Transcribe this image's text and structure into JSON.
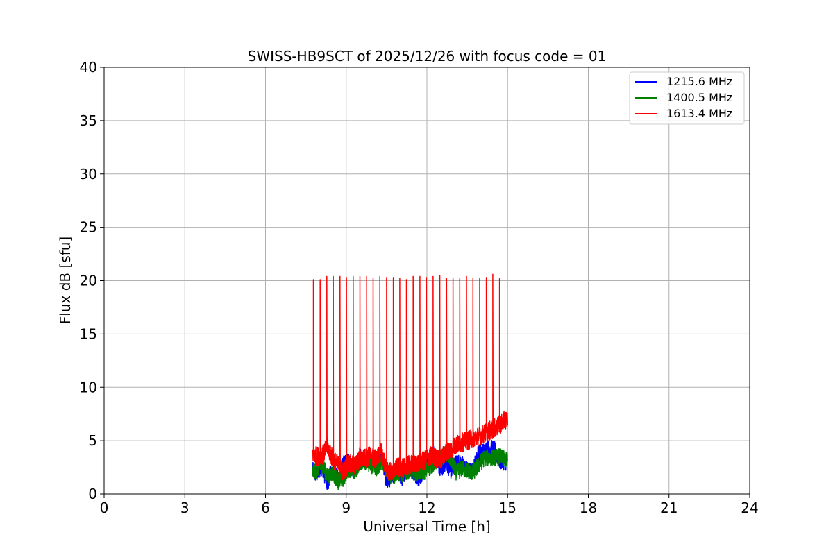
{
  "chart_data": {
    "type": "line",
    "title": "SWISS-HB9SCT of 2025/12/26 with focus code = 01",
    "xlabel": "Universal Time [h]",
    "ylabel": "Flux dB [sfu]",
    "xlim": [
      0,
      24
    ],
    "ylim": [
      0,
      40
    ],
    "xticks": [
      0,
      3,
      6,
      9,
      12,
      15,
      18,
      21,
      24
    ],
    "yticks": [
      0,
      5,
      10,
      15,
      20,
      25,
      30,
      35,
      40
    ],
    "grid": true,
    "legend_position": "top-right",
    "series": [
      {
        "name": "1215.6 MHz",
        "color": "#0000ff",
        "x": [
          7.75,
          7.9,
          8.1,
          8.3,
          8.5,
          8.7,
          8.9,
          9.1,
          9.3,
          9.5,
          9.7,
          9.9,
          10.1,
          10.3,
          10.5,
          10.7,
          10.9,
          11.1,
          11.3,
          11.5,
          11.7,
          11.9,
          12.1,
          12.3,
          12.5,
          12.7,
          12.9,
          13.1,
          13.3,
          13.5,
          13.7,
          13.9,
          14.1,
          14.3,
          14.5,
          14.7,
          14.9,
          15.0
        ],
        "y": [
          2.2,
          1.8,
          2.6,
          1.0,
          2.4,
          1.4,
          2.8,
          3.2,
          2.1,
          3.5,
          3.1,
          3.4,
          2.9,
          3.8,
          1.2,
          1.6,
          2.2,
          1.4,
          2.8,
          2.0,
          1.5,
          2.3,
          3.4,
          3.9,
          2.2,
          3.0,
          2.1,
          3.0,
          2.8,
          2.2,
          2.1,
          3.8,
          4.0,
          4.3,
          4.2,
          3.1,
          3.0,
          3.0
        ]
      },
      {
        "name": "1400.5 MHz",
        "color": "#008000",
        "x": [
          7.75,
          7.9,
          8.1,
          8.3,
          8.5,
          8.7,
          8.9,
          9.1,
          9.3,
          9.5,
          9.7,
          9.9,
          10.1,
          10.3,
          10.5,
          10.7,
          10.9,
          11.1,
          11.3,
          11.5,
          11.7,
          11.9,
          12.1,
          12.3,
          12.5,
          12.7,
          12.9,
          13.1,
          13.3,
          13.5,
          13.7,
          13.9,
          14.1,
          14.3,
          14.5,
          14.7,
          14.9,
          15.0
        ],
        "y": [
          2.0,
          2.3,
          2.8,
          1.6,
          2.0,
          1.2,
          1.5,
          2.4,
          2.0,
          3.0,
          3.1,
          2.7,
          2.4,
          3.0,
          2.3,
          1.6,
          2.0,
          1.8,
          2.2,
          2.1,
          2.0,
          2.1,
          2.5,
          3.0,
          3.3,
          3.8,
          3.2,
          2.0,
          2.4,
          2.2,
          2.0,
          2.6,
          3.3,
          3.4,
          3.4,
          3.5,
          3.2,
          3.1
        ]
      },
      {
        "name": "1613.4 MHz",
        "color": "#ff0000",
        "x": [
          7.75,
          7.9,
          8.1,
          8.3,
          8.5,
          8.7,
          8.9,
          9.1,
          9.3,
          9.5,
          9.7,
          9.9,
          10.1,
          10.3,
          10.5,
          10.7,
          10.9,
          11.1,
          11.3,
          11.5,
          11.7,
          11.9,
          12.1,
          12.3,
          12.5,
          12.7,
          12.9,
          13.1,
          13.3,
          13.5,
          13.7,
          13.9,
          14.1,
          14.3,
          14.5,
          14.7,
          14.9,
          15.0
        ],
        "y": [
          3.8,
          3.5,
          3.6,
          4.4,
          3.3,
          2.7,
          2.1,
          2.9,
          2.6,
          3.2,
          3.4,
          3.6,
          3.2,
          3.9,
          2.3,
          2.0,
          2.5,
          2.4,
          2.7,
          2.8,
          2.9,
          3.1,
          3.6,
          3.4,
          3.2,
          3.9,
          4.2,
          4.6,
          4.8,
          5.0,
          5.2,
          5.4,
          5.6,
          5.9,
          6.1,
          6.5,
          6.9,
          7.0
        ],
        "spikes_x": [
          7.78,
          8.03,
          8.28,
          8.52,
          8.77,
          9.01,
          9.26,
          9.51,
          9.76,
          10.0,
          10.25,
          10.5,
          10.75,
          10.99,
          11.24,
          11.49,
          11.74,
          11.98,
          12.23,
          12.48,
          12.73,
          12.97,
          13.22,
          13.47,
          13.71,
          13.96,
          14.21,
          14.45,
          14.7
        ],
        "spikes_y": [
          20.1,
          20.1,
          20.4,
          20.4,
          20.4,
          20.3,
          20.4,
          20.4,
          20.4,
          20.2,
          20.4,
          20.3,
          20.3,
          20.2,
          20.1,
          20.4,
          20.4,
          20.3,
          20.4,
          20.5,
          20.2,
          20.2,
          20.2,
          20.4,
          20.2,
          20.2,
          20.3,
          20.6,
          20.2
        ]
      }
    ]
  }
}
